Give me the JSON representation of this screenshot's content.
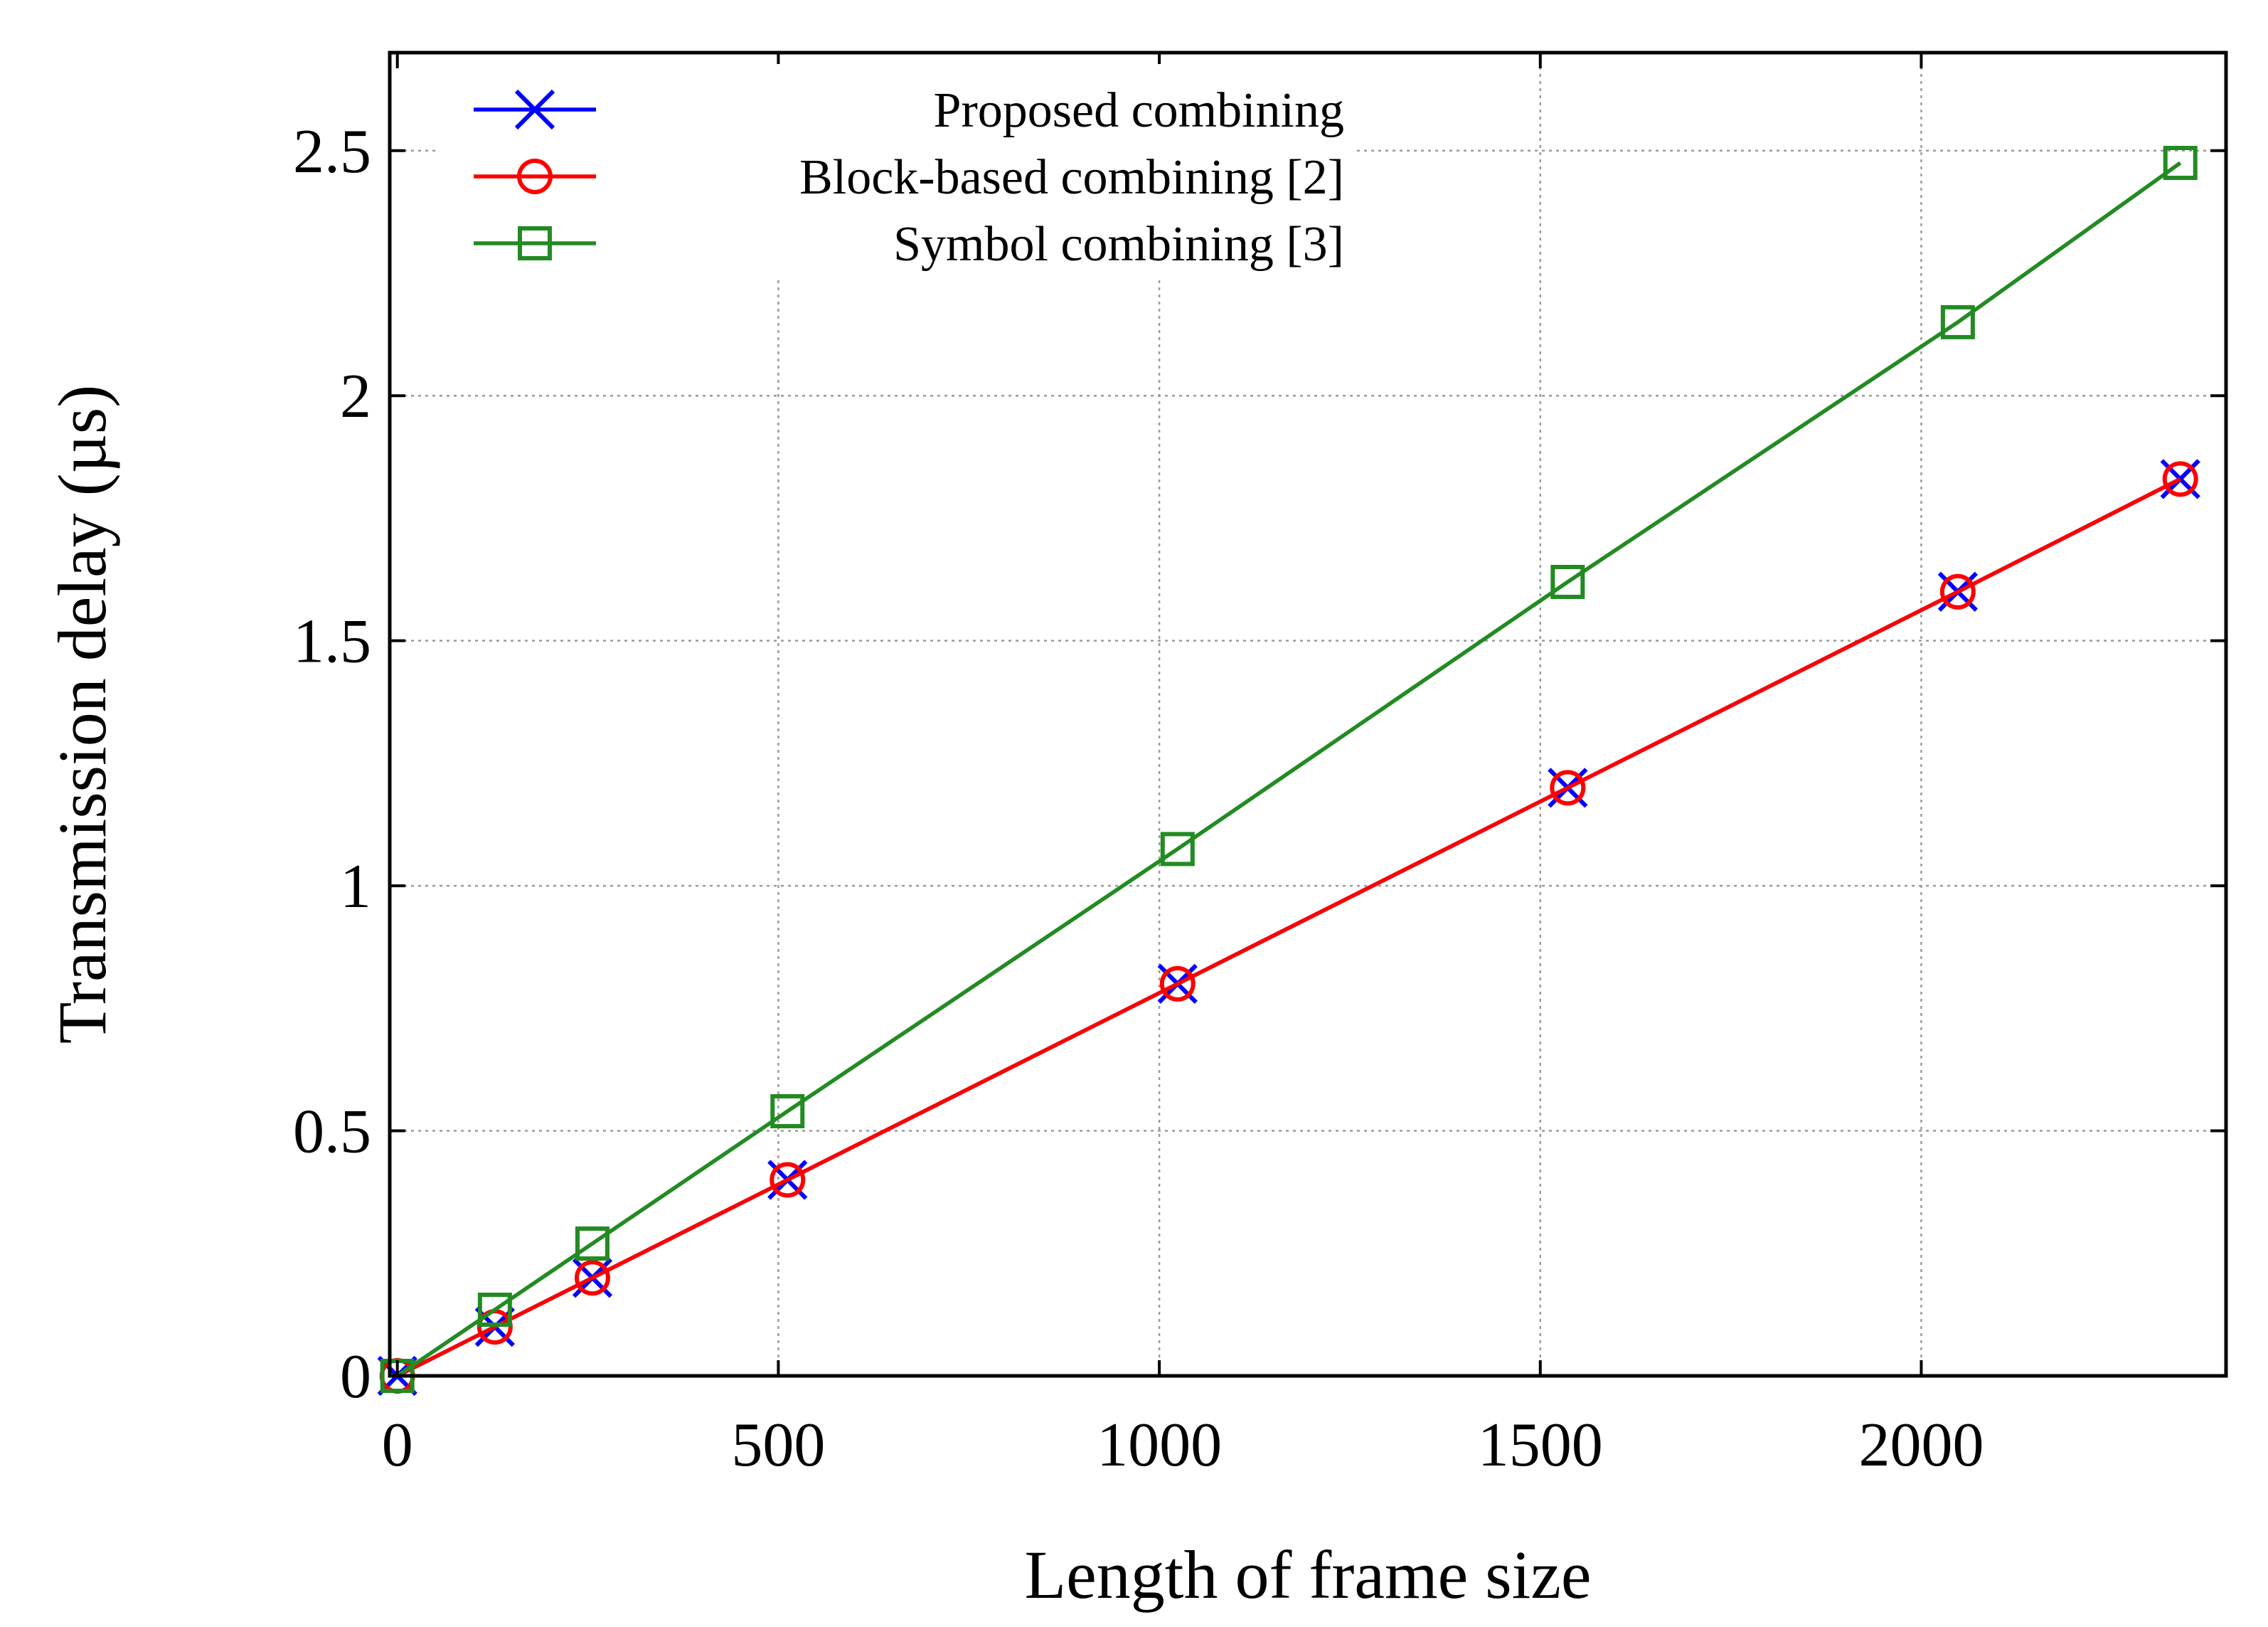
{
  "chart_data": {
    "type": "line",
    "title": "",
    "xlabel": "Length of frame size",
    "ylabel": "Transmission delay (µs)",
    "xlim": [
      -10,
      2400
    ],
    "ylim": [
      0,
      2.7
    ],
    "xticks": [
      0,
      500,
      1000,
      1500,
      2000
    ],
    "yticks": [
      0,
      0.5,
      1,
      1.5,
      2,
      2.5
    ],
    "xtick_labels": [
      "0",
      "500",
      "1000",
      "1500",
      "2000"
    ],
    "ytick_labels": [
      "0",
      "0.5",
      "1",
      "1.5",
      "2",
      "2.5"
    ],
    "grid": true,
    "legend_position": "top-left",
    "x": [
      0,
      128,
      256,
      512,
      1024,
      1536,
      2048,
      2340
    ],
    "series": [
      {
        "name": "Proposed combining",
        "color": "#0000ff",
        "marker": "cross-icon",
        "values": [
          0,
          0.1,
          0.2,
          0.4,
          0.8,
          1.2,
          1.6,
          1.83
        ]
      },
      {
        "name": "Block-based combining [2]",
        "color": "#ff0000",
        "marker": "circle-icon",
        "values": [
          0,
          0.1,
          0.2,
          0.4,
          0.8,
          1.2,
          1.6,
          1.83
        ]
      },
      {
        "name": "Symbol combining [3]",
        "color": "#228b22",
        "marker": "square-icon",
        "values": [
          0,
          0.135,
          0.27,
          0.54,
          1.075,
          1.62,
          2.15,
          2.475
        ]
      }
    ]
  }
}
